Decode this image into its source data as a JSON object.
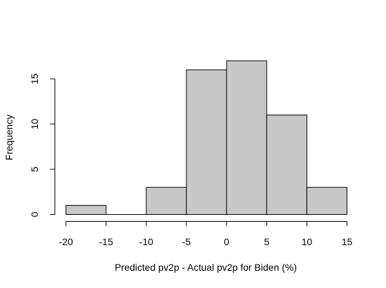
{
  "chart_data": {
    "type": "histogram",
    "title": "",
    "xlabel": "Predicted pv2p - Actual pv2p for Biden (%)",
    "ylabel": "Frequency",
    "bins": [
      {
        "from": -20,
        "to": -15,
        "count": 1
      },
      {
        "from": -15,
        "to": -10,
        "count": 0
      },
      {
        "from": -10,
        "to": -5,
        "count": 3
      },
      {
        "from": -5,
        "to": 0,
        "count": 16
      },
      {
        "from": 0,
        "to": 5,
        "count": 17
      },
      {
        "from": 5,
        "to": 10,
        "count": 11
      },
      {
        "from": 10,
        "to": 15,
        "count": 3
      }
    ],
    "x_ticks": [
      -20,
      -15,
      -10,
      -5,
      0,
      5,
      10,
      15
    ],
    "y_ticks": [
      0,
      5,
      10,
      15
    ],
    "xlim": [
      -20,
      15
    ],
    "ylim": [
      0,
      17
    ],
    "bar_fill": "#c8c8c8",
    "bar_stroke": "#000000",
    "grid": false,
    "legend": "none"
  }
}
